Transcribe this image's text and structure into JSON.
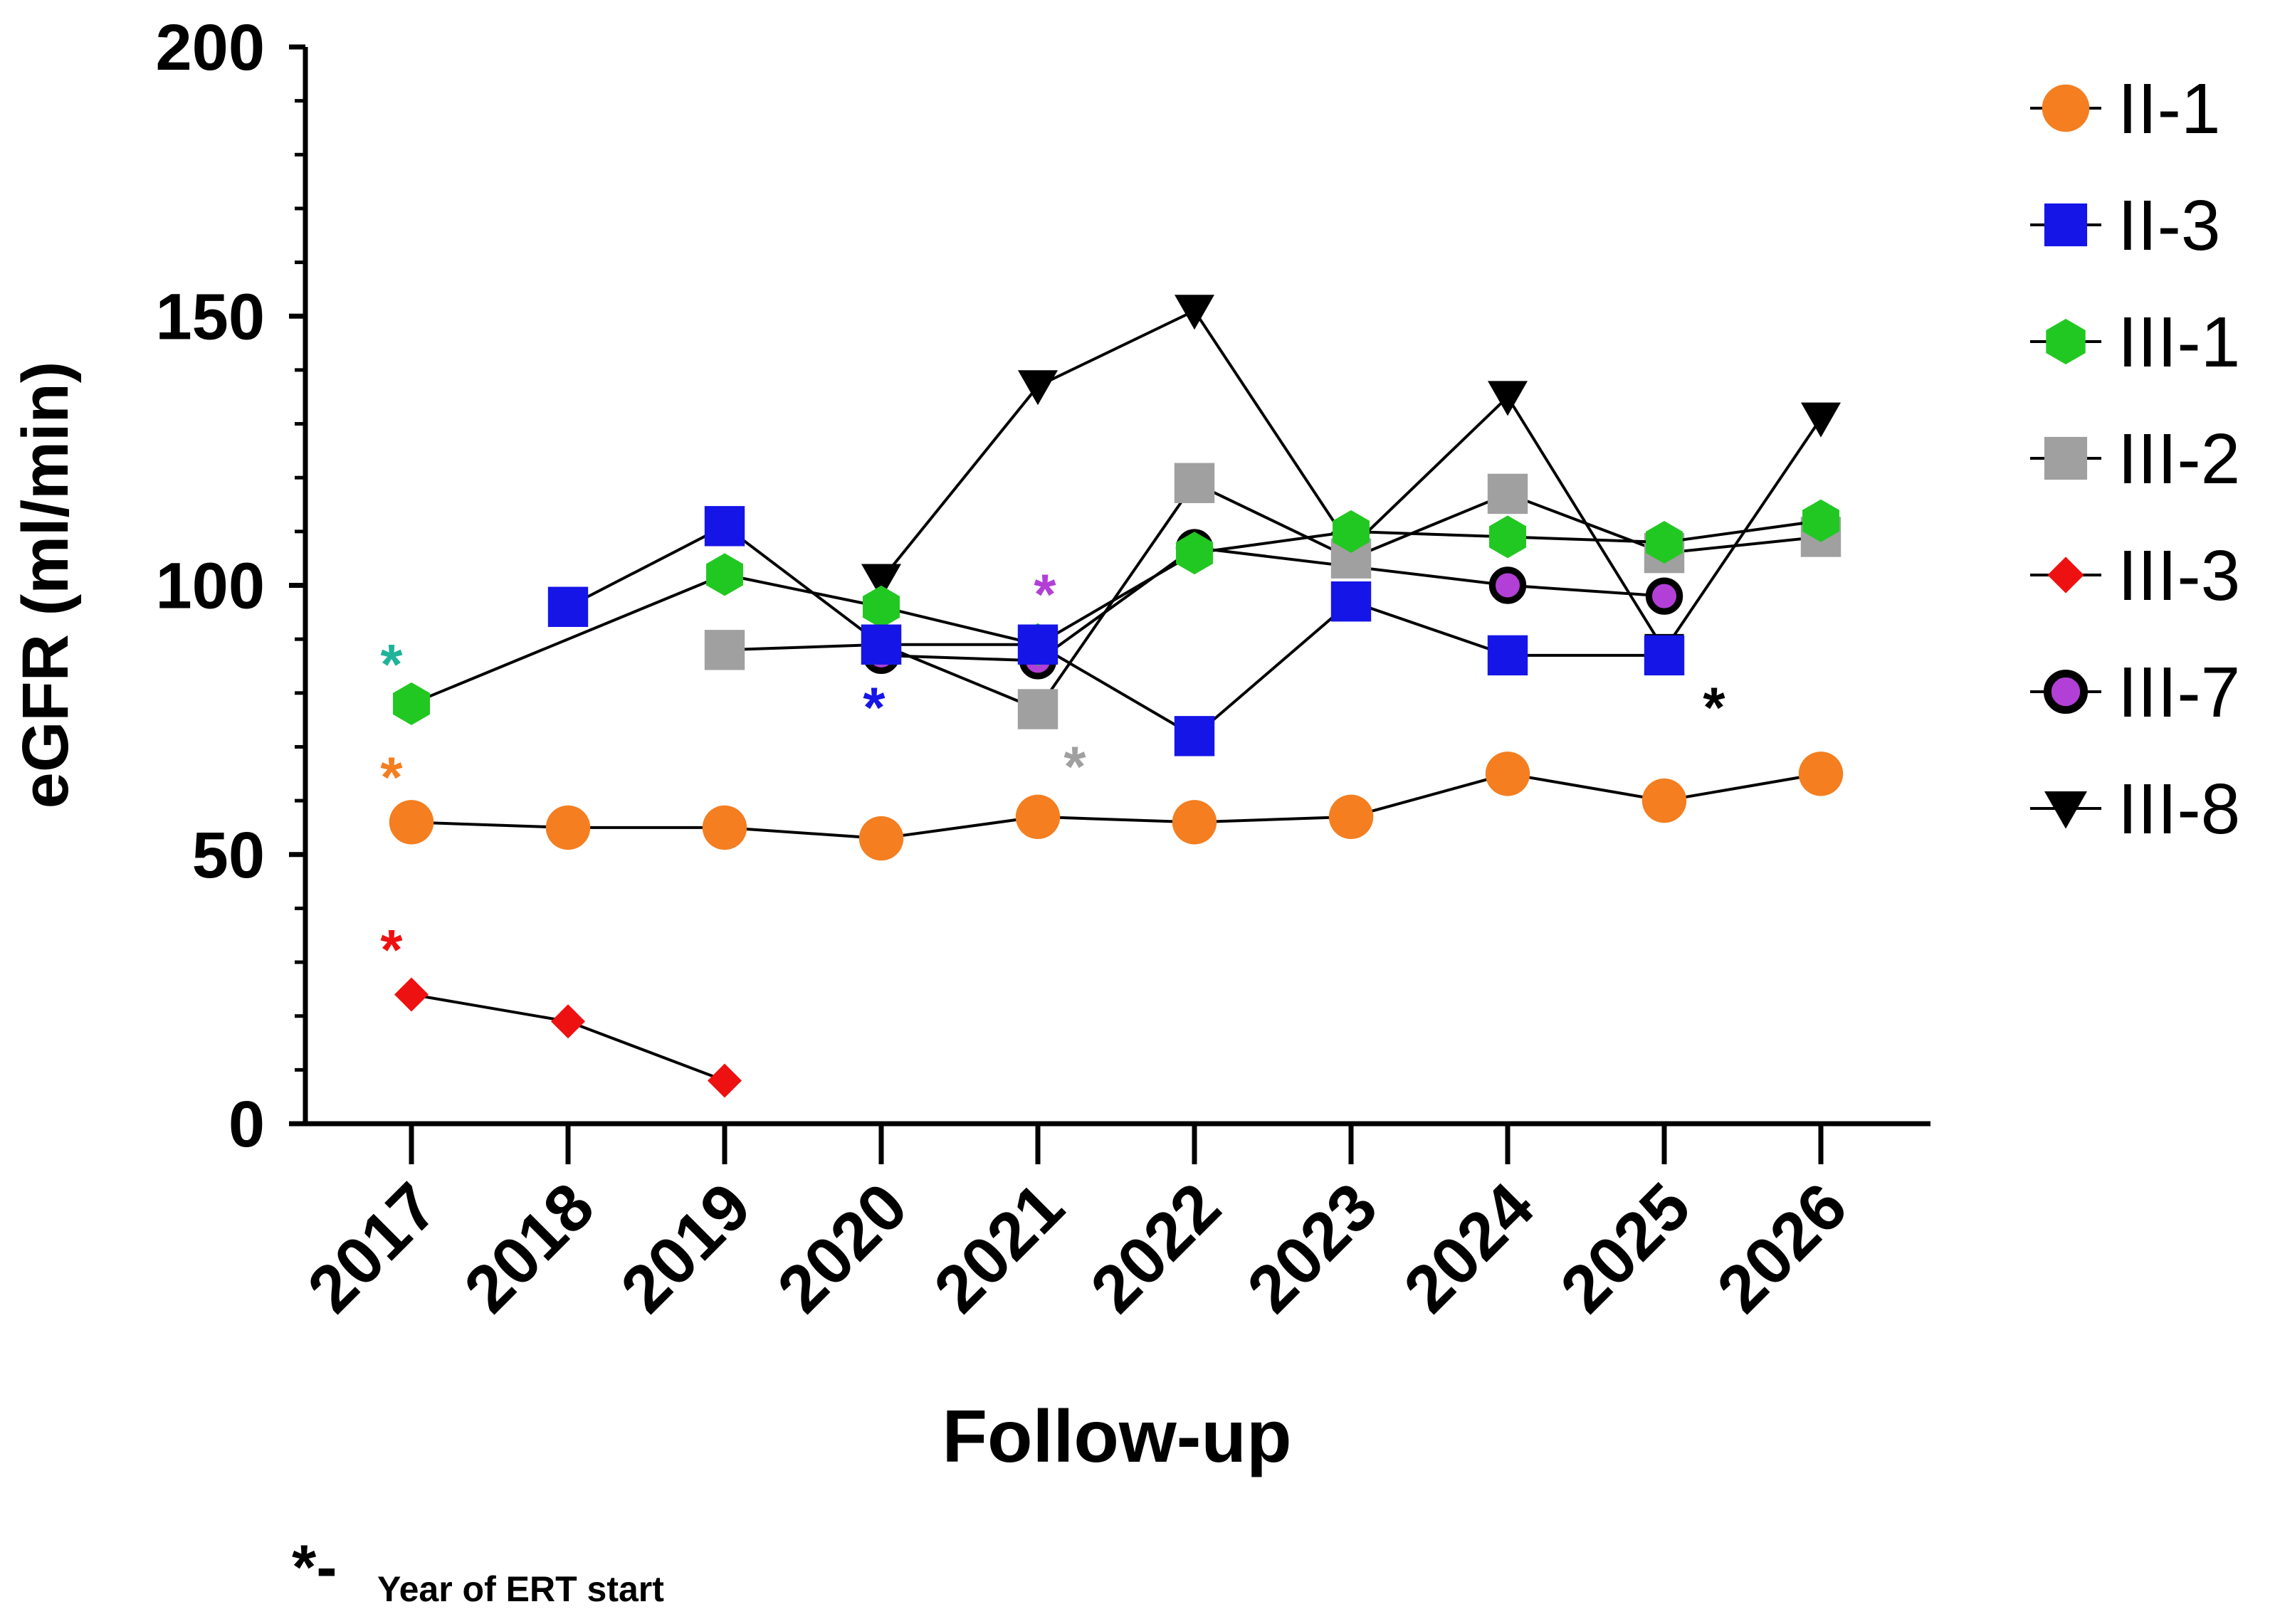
{
  "chart_data": {
    "type": "line",
    "title": "",
    "xlabel": "Follow-up",
    "ylabel": "eGFR (ml/min)",
    "ylim": [
      0,
      200
    ],
    "yticks": [
      "0",
      "50",
      "100",
      "150",
      "200"
    ],
    "categories": [
      "2017",
      "2018",
      "2019",
      "2020",
      "2021",
      "2022",
      "2023",
      "2024",
      "2025",
      "2026"
    ],
    "grid": false,
    "legend_position": "right",
    "series": [
      {
        "name": "II-1",
        "color": "#F47E20",
        "marker": "circle",
        "values": [
          56,
          55,
          55,
          53,
          57,
          56,
          57,
          65,
          60,
          65
        ]
      },
      {
        "name": "II-3",
        "color": "#1515E8",
        "marker": "square",
        "values": [
          null,
          96,
          111,
          89,
          89,
          72,
          97,
          87,
          87,
          null
        ]
      },
      {
        "name": "III-1",
        "color": "#22C822",
        "marker": "hexagon",
        "values": [
          78,
          null,
          102,
          96,
          89,
          106,
          110,
          109,
          108,
          112
        ]
      },
      {
        "name": "III-2",
        "color": "#A0A0A0",
        "marker": "square",
        "values": [
          null,
          null,
          88,
          89,
          77,
          119,
          105,
          117,
          106,
          109
        ]
      },
      {
        "name": "III-3",
        "color": "#EE1111",
        "marker": "diamond",
        "values": [
          24,
          19,
          8,
          null,
          null,
          null,
          null,
          null,
          null,
          null
        ]
      },
      {
        "name": "III-7",
        "color": "#B23FD6",
        "marker": "ring",
        "values": [
          null,
          null,
          null,
          87,
          86,
          107,
          null,
          100,
          98,
          null
        ]
      },
      {
        "name": "III-8",
        "color": "#000000",
        "marker": "triangle-down",
        "values": [
          null,
          null,
          null,
          101,
          137,
          151,
          107,
          135,
          88,
          131
        ]
      }
    ],
    "ert_start_markers": [
      {
        "series": "III-1",
        "label": "*",
        "color": "#20B39A",
        "x": "2017",
        "y": 87
      },
      {
        "series": "II-1",
        "label": "*",
        "color": "#F47E20",
        "x": "2017",
        "y": 66
      },
      {
        "series": "III-3",
        "label": "*",
        "color": "#EE1111",
        "x": "2017",
        "y": 34
      },
      {
        "series": "II-3",
        "label": "*",
        "color": "#1515E8",
        "x": "2020",
        "y": 79
      },
      {
        "series": "III-7",
        "label": "*",
        "color": "#B23FD6",
        "x": "2021",
        "y": 100
      },
      {
        "series": "III-2",
        "label": "*",
        "color": "#A0A0A0",
        "x": "2021",
        "y": 68
      },
      {
        "series": "III-8",
        "label": "*",
        "color": "#000000",
        "x": "2025",
        "y": 79
      }
    ],
    "footnote": {
      "symbol": "*-",
      "text": "Year of ERT start"
    }
  }
}
